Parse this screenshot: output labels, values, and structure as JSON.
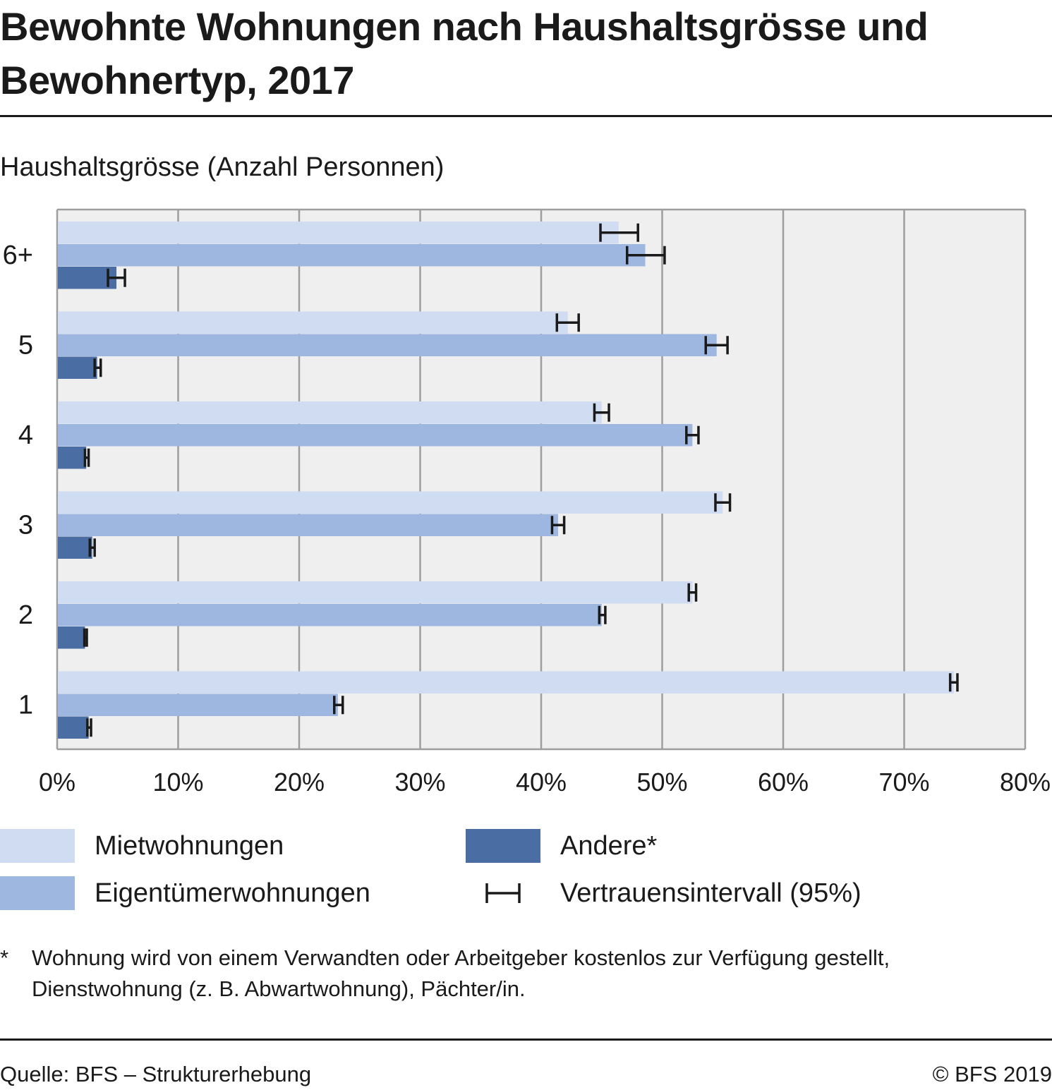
{
  "title": "Bewohnte Wohnungen nach Haushaltsgrösse und Bewohnertyp, 2017",
  "subtitle": "Haushaltsgrösse (Anzahl Personnen)",
  "legend": [
    {
      "label": "Mietwohnungen",
      "color": "#d0dcf1",
      "kind": "swatch"
    },
    {
      "label": "Eigentümerwohnungen",
      "color": "#9db7e0",
      "kind": "swatch"
    },
    {
      "label": "Andere*",
      "color": "#4a6ea4",
      "kind": "swatch"
    },
    {
      "label": "Vertrauensintervall (95%)",
      "color": "#1a1a1a",
      "kind": "errorbar-icon"
    }
  ],
  "footnote": {
    "mark": "*",
    "text": "Wohnung wird von einem Verwandten oder Arbeitgeber kostenlos zur Verfügung gestellt, Dienstwohnung (z. B. Abwartwohnung), Pächter/in."
  },
  "source": "Quelle: BFS – Strukturerhebung",
  "copyright": "© BFS 2019",
  "chart_data": {
    "type": "bar",
    "orientation": "horizontal",
    "categories": [
      "6+",
      "5",
      "4",
      "3",
      "2",
      "1"
    ],
    "xlim": [
      0,
      80
    ],
    "xticks": [
      0,
      10,
      20,
      30,
      40,
      50,
      60,
      70,
      80
    ],
    "xtick_labels": [
      "0%",
      "10%",
      "20%",
      "30%",
      "40%",
      "50%",
      "60%",
      "70%",
      "80%"
    ],
    "grid": true,
    "legend_position": "bottom",
    "series": [
      {
        "name": "Mietwohnungen",
        "color": "#d0dcf1",
        "values": [
          46.4,
          42.2,
          45.0,
          55.0,
          52.5,
          74.1
        ],
        "ci": [
          [
            44.9,
            48.0
          ],
          [
            41.3,
            43.1
          ],
          [
            44.4,
            45.6
          ],
          [
            54.4,
            55.6
          ],
          [
            52.2,
            52.8
          ],
          [
            73.8,
            74.4
          ]
        ]
      },
      {
        "name": "Eigentümerwohnungen",
        "color": "#9db7e0",
        "values": [
          48.6,
          54.5,
          52.5,
          41.4,
          45.0,
          23.2
        ],
        "ci": [
          [
            47.1,
            50.2
          ],
          [
            53.6,
            55.4
          ],
          [
            52.0,
            53.0
          ],
          [
            40.9,
            41.9
          ],
          [
            44.8,
            45.3
          ],
          [
            22.9,
            23.6
          ]
        ]
      },
      {
        "name": "Andere*",
        "color": "#4a6ea4",
        "values": [
          4.9,
          3.3,
          2.4,
          2.9,
          2.3,
          2.6
        ],
        "ci": [
          [
            4.2,
            5.6
          ],
          [
            3.1,
            3.6
          ],
          [
            2.3,
            2.6
          ],
          [
            2.7,
            3.1
          ],
          [
            2.25,
            2.45
          ],
          [
            2.5,
            2.8
          ]
        ]
      }
    ]
  }
}
